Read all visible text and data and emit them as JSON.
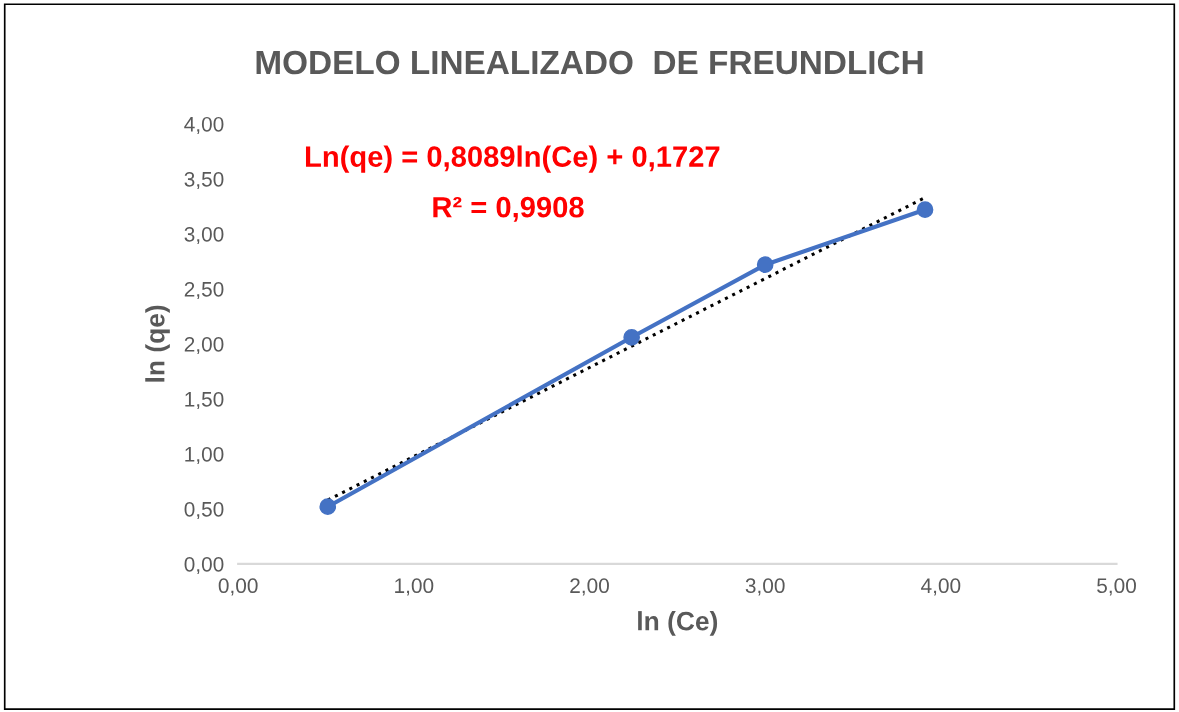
{
  "chart_data": {
    "type": "line",
    "title": "MODELO LINEALIZADO  DE FREUNDLICH",
    "xlabel": "ln (Ce)",
    "ylabel": "ln (qe)",
    "x": [
      0.51,
      2.24,
      3.0,
      3.91
    ],
    "series": [
      {
        "color": "#4472c4",
        "values": [
          0.52,
          2.06,
          2.72,
          3.22
        ],
        "marker": "circle",
        "line_style": "solid"
      },
      {
        "type": "line",
        "color": "#000000",
        "x": [
          0.51,
          3.91
        ],
        "values": [
          0.58,
          3.33
        ],
        "marker": "none",
        "line_style": "dotted"
      }
    ],
    "annotations": [
      "Ln(qe) = 0,8089ln(Ce) + 0,1727",
      "R² = 0,9908"
    ],
    "xlim": [
      0,
      5
    ],
    "xticks": [
      {
        "value": 0,
        "label": "0,00"
      },
      {
        "value": 1,
        "label": "1,00"
      },
      {
        "value": 2,
        "label": "2,00"
      },
      {
        "value": 3,
        "label": "3,00"
      },
      {
        "value": 4,
        "label": "4,00"
      },
      {
        "value": 5,
        "label": "5,00"
      }
    ],
    "ylim": [
      0,
      4
    ],
    "yticks": [
      {
        "value": 0,
        "label": "0,00"
      },
      {
        "value": 0.5,
        "label": "0,50"
      },
      {
        "value": 1,
        "label": "1,00"
      },
      {
        "value": 1.5,
        "label": "1,50"
      },
      {
        "value": 2,
        "label": "2,00"
      },
      {
        "value": 2.5,
        "label": "2,50"
      },
      {
        "value": 3,
        "label": "3,00"
      },
      {
        "value": 3.5,
        "label": "3,50"
      },
      {
        "value": 4,
        "label": "4,00"
      }
    ],
    "grid": false
  }
}
